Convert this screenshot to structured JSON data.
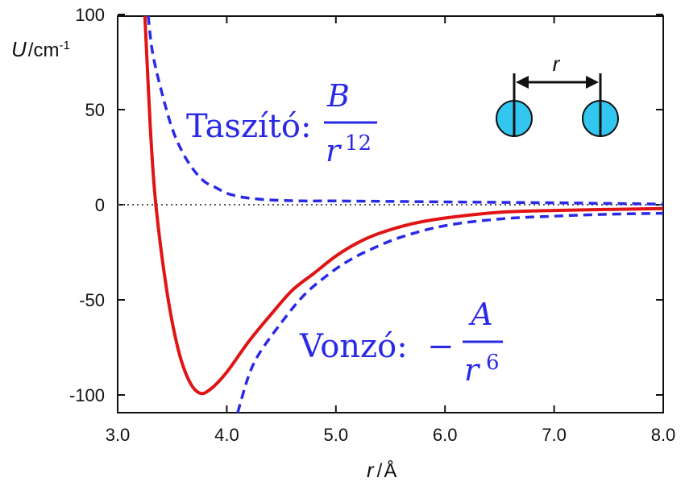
{
  "chart_data": {
    "type": "line",
    "title": "",
    "xlabel": {
      "symbol": "r",
      "unit": "Å"
    },
    "ylabel": {
      "symbol": "U",
      "unit": "cm",
      "unit_exp": "-1"
    },
    "xlim": [
      3.0,
      8.0
    ],
    "ylim": [
      -110,
      100
    ],
    "x_ticks": [
      "3.0",
      "4.0",
      "5.0",
      "6.0",
      "7.0",
      "8.0"
    ],
    "y_ticks": [
      "100",
      "50",
      "0",
      "-50",
      "-100"
    ],
    "grid": false,
    "series": [
      {
        "style": "solid",
        "color": "#e01414",
        "points": [
          [
            3.25,
            100
          ],
          [
            3.3,
            40
          ],
          [
            3.35,
            0
          ],
          [
            3.45,
            -45
          ],
          [
            3.55,
            -75
          ],
          [
            3.65,
            -92
          ],
          [
            3.75,
            -99
          ],
          [
            3.85,
            -97
          ],
          [
            4.0,
            -88
          ],
          [
            4.2,
            -72
          ],
          [
            4.4,
            -58
          ],
          [
            4.6,
            -45
          ],
          [
            4.8,
            -36
          ],
          [
            5.0,
            -27
          ],
          [
            5.2,
            -20
          ],
          [
            5.4,
            -15
          ],
          [
            5.7,
            -10
          ],
          [
            6.0,
            -7
          ],
          [
            6.5,
            -4
          ],
          [
            7.0,
            -3
          ],
          [
            8.0,
            -2
          ]
        ]
      },
      {
        "style": "dashed",
        "color": "#2a2ae6",
        "points": [
          [
            3.28,
            100
          ],
          [
            3.32,
            80
          ],
          [
            3.4,
            60
          ],
          [
            3.5,
            40
          ],
          [
            3.6,
            27
          ],
          [
            3.7,
            18
          ],
          [
            3.8,
            12
          ],
          [
            3.9,
            9
          ],
          [
            4.0,
            6
          ],
          [
            4.1,
            4.5
          ],
          [
            4.2,
            3.5
          ],
          [
            4.4,
            2.5
          ],
          [
            4.7,
            2
          ],
          [
            5.0,
            2
          ],
          [
            6.0,
            1.5
          ],
          [
            7.0,
            1
          ],
          [
            8.0,
            0.3
          ]
        ]
      },
      {
        "style": "dashed",
        "color": "#2a2ae6",
        "points": [
          [
            4.1,
            -110
          ],
          [
            4.2,
            -90
          ],
          [
            4.3,
            -78
          ],
          [
            4.5,
            -62
          ],
          [
            4.7,
            -48
          ],
          [
            4.9,
            -38
          ],
          [
            5.1,
            -30
          ],
          [
            5.3,
            -24
          ],
          [
            5.6,
            -17
          ],
          [
            6.0,
            -11
          ],
          [
            6.5,
            -7.5
          ],
          [
            7.0,
            -6
          ],
          [
            7.5,
            -5
          ],
          [
            8.0,
            -4.5
          ]
        ]
      }
    ],
    "reference_line": {
      "y": 0,
      "style": "dotted",
      "color": "#555555"
    },
    "annotations": {
      "repulsive": {
        "word": "Taszító:",
        "numerator": "B",
        "denominator": "r",
        "exponent": "12"
      },
      "attractive": {
        "word": "Vonzó:",
        "sign": "−",
        "numerator": "A",
        "denominator": "r",
        "exponent": "6"
      },
      "inset": {
        "label": "r",
        "sphere_color": "#33c6f0"
      }
    }
  }
}
